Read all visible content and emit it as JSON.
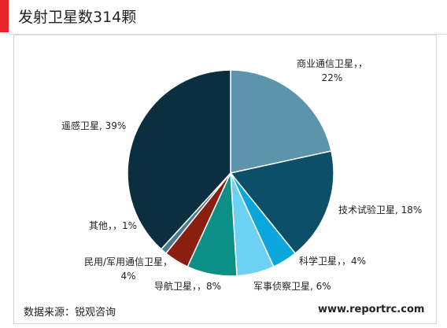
{
  "header": {
    "title": "发射卫星数314颗",
    "accent_color": "#e8262b"
  },
  "footer": {
    "source": "数据来源：锐观咨询",
    "site": "www.reportrc.com"
  },
  "chart_data": {
    "type": "pie",
    "title": "发射卫星数314颗",
    "start_angle_deg": 0,
    "direction": "clockwise",
    "legend": "none",
    "slices": [
      {
        "name": "商业通信卫星",
        "value": 22,
        "label_lines": [
          "商业通信卫星，，",
          "22%"
        ],
        "color": "#5b94ab"
      },
      {
        "name": "技术试验卫星",
        "value": 18,
        "label_lines": [
          "技术试验卫星, 18%"
        ],
        "color": "#0d4f69"
      },
      {
        "name": "科学卫星",
        "value": 4,
        "label_lines": [
          "科学卫星，，4%"
        ],
        "color": "#0aa6dc"
      },
      {
        "name": "军事侦察卫星",
        "value": 6,
        "label_lines": [
          "军事侦察卫星, 6%"
        ],
        "color": "#6cd1f2"
      },
      {
        "name": "导航卫星",
        "value": 8,
        "label_lines": [
          "导航卫星，，8%"
        ],
        "color": "#0c8f86"
      },
      {
        "name": "民用/军用通信卫星",
        "value": 4,
        "label_lines": [
          "民用/军用通信卫星，",
          "4%"
        ],
        "color": "#8a1f10"
      },
      {
        "name": "其他",
        "value": 1,
        "label_lines": [
          "其他，，1%"
        ],
        "color": "#4d7a8a"
      },
      {
        "name": "遥感卫星",
        "value": 39,
        "label_lines": [
          "遥感卫星, 39%"
        ],
        "color": "#0b2f3e"
      }
    ]
  }
}
